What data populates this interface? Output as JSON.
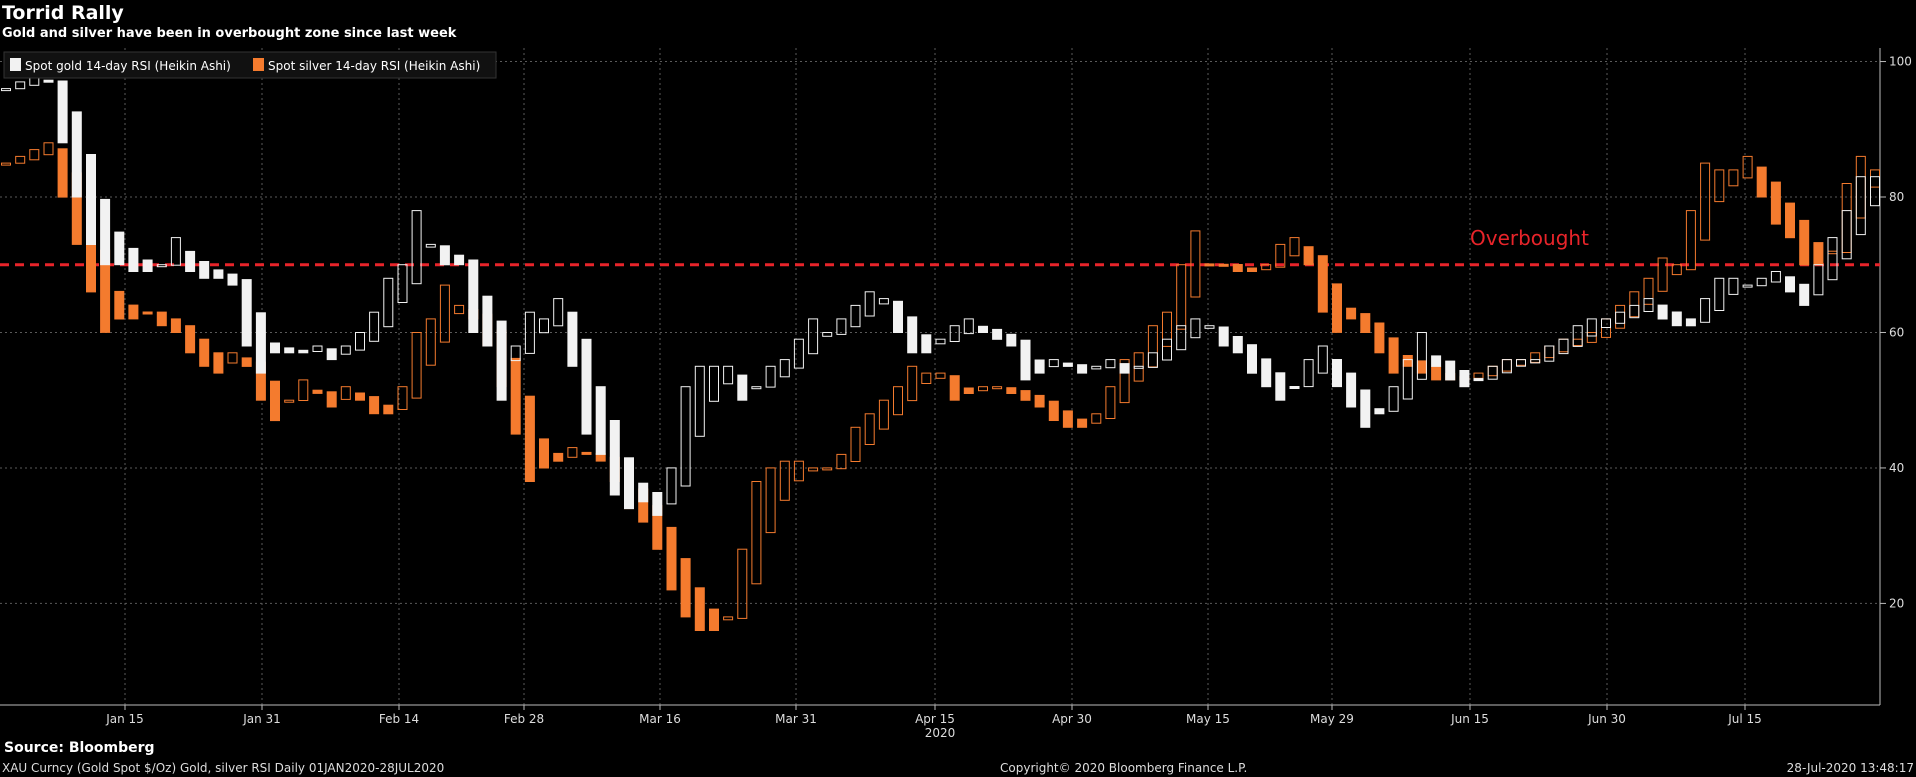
{
  "title": "Torrid Rally",
  "subtitle": "Gold and silver have been in overbought zone since last week",
  "source": "Source: Bloomberg",
  "footer": {
    "left": "XAU Curncy (Gold Spot  $/Oz) Gold, silver RSI  Daily 01JAN2020-28JUL2020",
    "middle": "Copyright© 2020 Bloomberg Finance L.P.",
    "right": "28-Jul-2020 13:48:17"
  },
  "colors": {
    "gold": "#f2f2f2",
    "silver": "#f47b2e",
    "threshold": "#e8242a",
    "grid": "#5a5a5a",
    "axis_text": "#dddddd"
  },
  "chart_data": {
    "type": "candlestick",
    "legend_placement": "top-left",
    "grid": true,
    "ylim": [
      5,
      102
    ],
    "y_ticks": [
      "100",
      "80",
      "60",
      "40",
      "20"
    ],
    "x_ticks": [
      "Jan 15",
      "Jan 31",
      "Feb 14",
      "Feb 28",
      "Mar 16",
      "Mar 31",
      "Apr 15",
      "Apr 30",
      "May 15",
      "May 29",
      "Jun 15",
      "Jun 30",
      "Jul 15"
    ],
    "x_year_label": "2020",
    "threshold": {
      "value": 70,
      "label": "Overbought"
    },
    "series": [
      {
        "name": "Spot gold 14-day RSI (Heikin Ashi)",
        "values": [
          96,
          97,
          98,
          97,
          88,
          80,
          73,
          70,
          70,
          69,
          69,
          70,
          74,
          69,
          68,
          68,
          67,
          58,
          54,
          57,
          57,
          57,
          58,
          56,
          58,
          60,
          63,
          68,
          70,
          78,
          73,
          70,
          70,
          60,
          58,
          50,
          58,
          63,
          62,
          65,
          55,
          45,
          42,
          36,
          34,
          35,
          33,
          40,
          52,
          55,
          55,
          55,
          50,
          52,
          55,
          56,
          59,
          62,
          60,
          62,
          64,
          66,
          65,
          60,
          57,
          57,
          59,
          61,
          62,
          60,
          59,
          58,
          53,
          54,
          56,
          55,
          54,
          55,
          56,
          54,
          55,
          57,
          59,
          61,
          62,
          61,
          58,
          57,
          54,
          52,
          50,
          52,
          56,
          58,
          52,
          49,
          46,
          48,
          52,
          56,
          60,
          55,
          53,
          52,
          53,
          55,
          56,
          56,
          56,
          58,
          59,
          61,
          62,
          62,
          63,
          64,
          65,
          62,
          61,
          61,
          65,
          68,
          68,
          67,
          68,
          69,
          66,
          64,
          70,
          74,
          78,
          83,
          83
        ]
      },
      {
        "name": "Spot silver 14-day RSI (Heikin Ashi)",
        "values": [
          85,
          86,
          87,
          88,
          80,
          73,
          66,
          60,
          62,
          62,
          63,
          61,
          60,
          57,
          55,
          54,
          57,
          55,
          50,
          47,
          50,
          53,
          51,
          49,
          52,
          50,
          48,
          48,
          52,
          60,
          62,
          67,
          64,
          62,
          58,
          52,
          45,
          38,
          40,
          41,
          43,
          42,
          41,
          38,
          34,
          32,
          28,
          22,
          18,
          16,
          16,
          18,
          28,
          38,
          40,
          41,
          41,
          40,
          40,
          42,
          46,
          48,
          50,
          52,
          55,
          54,
          54,
          50,
          51,
          52,
          52,
          51,
          50,
          49,
          47,
          46,
          46,
          48,
          52,
          56,
          57,
          61,
          63,
          70,
          75,
          70,
          70,
          69,
          69,
          70,
          73,
          74,
          70,
          63,
          60,
          62,
          60,
          57,
          54,
          55,
          54,
          53,
          53,
          53,
          54,
          55,
          56,
          56,
          57,
          58,
          59,
          59,
          60,
          62,
          64,
          66,
          68,
          71,
          70,
          78,
          85,
          84,
          84,
          86,
          80,
          76,
          74,
          70,
          70,
          72,
          82,
          86,
          84
        ]
      }
    ]
  }
}
